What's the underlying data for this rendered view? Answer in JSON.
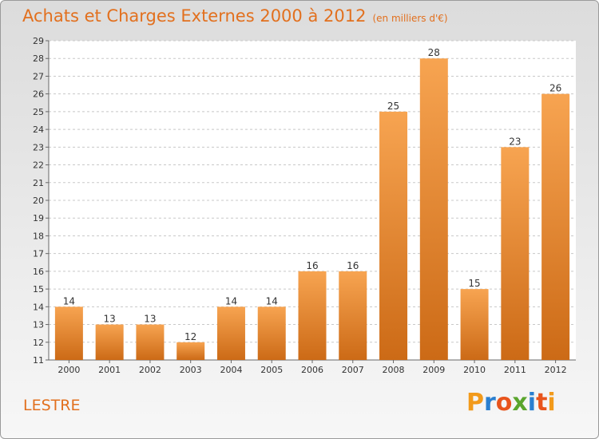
{
  "header": {
    "title": "Achats et Charges Externes 2000 à 2012",
    "subtitle": "(en milliers d'€)"
  },
  "footer": {
    "commune": "LESTRE",
    "logo_letters": [
      "P",
      "r",
      "o",
      "x",
      "i",
      "t",
      "i"
    ],
    "logo_colors": [
      "#f29a1b",
      "#2a7fd0",
      "#e8541c",
      "#5aa52d",
      "#2a7fd0",
      "#e8541c",
      "#f29a1b"
    ]
  },
  "chart_data": {
    "type": "bar",
    "categories": [
      "2000",
      "2001",
      "2002",
      "2003",
      "2004",
      "2005",
      "2006",
      "2007",
      "2008",
      "2009",
      "2010",
      "2011",
      "2012"
    ],
    "values": [
      14,
      13,
      13,
      12,
      14,
      14,
      16,
      16,
      25,
      28,
      15,
      23,
      26
    ],
    "ylim": [
      11,
      29
    ],
    "yticks": [
      11,
      12,
      13,
      14,
      15,
      16,
      17,
      18,
      19,
      20,
      21,
      22,
      23,
      24,
      25,
      26,
      27,
      28,
      29
    ],
    "grid": true,
    "bar_color": "#f08a2c",
    "title": "Achats et Charges Externes 2000 à 2012",
    "subtitle": "(en milliers d'€)"
  }
}
